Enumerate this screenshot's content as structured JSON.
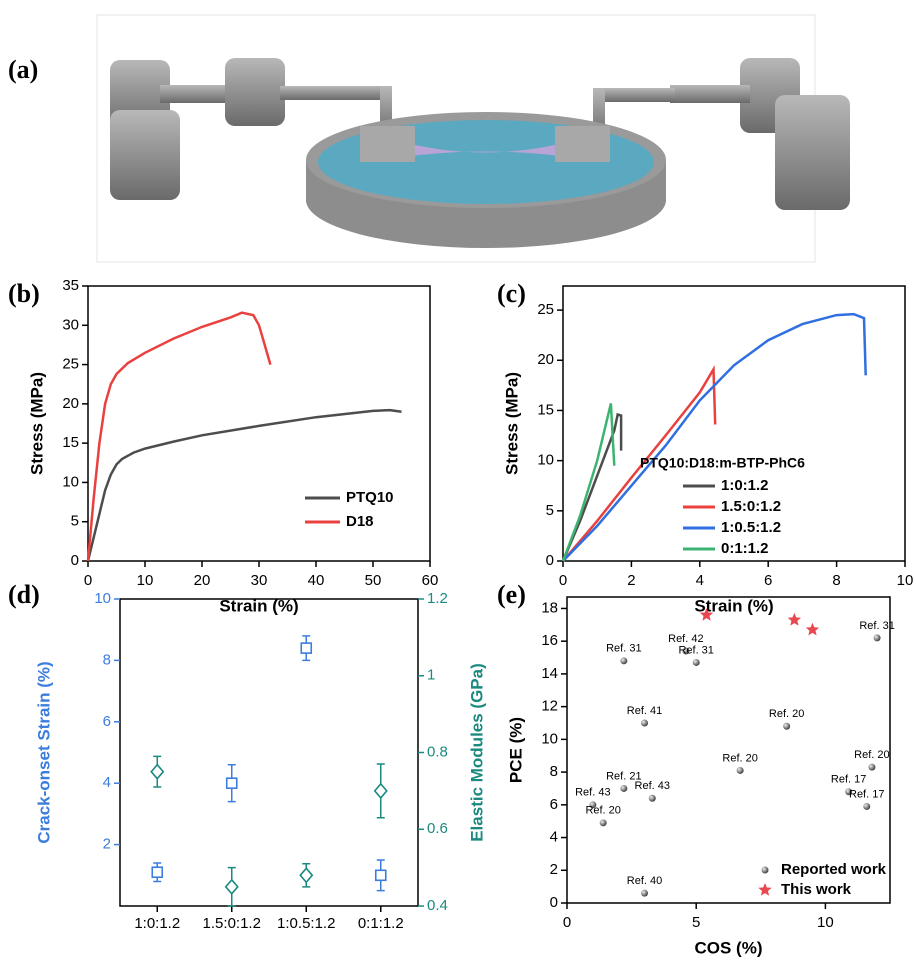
{
  "figure_a": {
    "panel_label": "(a)"
  },
  "chart_data": [
    {
      "type": "line",
      "panel_label": "(b)",
      "xlabel": "Strain (%)",
      "ylabel": "Stress (MPa)",
      "xlim": [
        0,
        60
      ],
      "ylim": [
        0,
        35
      ],
      "xticks": [
        0,
        10,
        20,
        30,
        40,
        50,
        60
      ],
      "yticks": [
        0,
        5,
        10,
        15,
        20,
        25,
        30,
        35
      ],
      "legend": "lower right",
      "series": [
        {
          "name": "PTQ10",
          "color": "#4d4d4d",
          "x": [
            0,
            1,
            2,
            3,
            4,
            5,
            6,
            8,
            10,
            15,
            20,
            30,
            40,
            50,
            53,
            55
          ],
          "values": [
            0,
            3,
            6,
            9,
            11,
            12.3,
            13,
            13.8,
            14.3,
            15.2,
            16,
            17.2,
            18.3,
            19.1,
            19.2,
            19
          ]
        },
        {
          "name": "D18",
          "color": "#e8413e",
          "x": [
            0,
            1,
            2,
            3,
            4,
            5,
            7,
            10,
            15,
            20,
            25,
            27,
            29,
            30,
            31,
            32
          ],
          "values": [
            0,
            8,
            15,
            20,
            22.5,
            23.8,
            25.2,
            26.5,
            28.3,
            29.8,
            31,
            31.6,
            31.3,
            30,
            27.5,
            25
          ]
        }
      ]
    },
    {
      "type": "line",
      "panel_label": "(c)",
      "xlabel": "Strain (%)",
      "ylabel": "Stress (MPa)",
      "xlim": [
        0,
        10
      ],
      "ylim": [
        0,
        27.4
      ],
      "xticks": [
        0,
        2,
        4,
        6,
        8,
        10
      ],
      "yticks": [
        0,
        5,
        10,
        15,
        20,
        25
      ],
      "legend": "lower right",
      "legend_title": "PTQ10:D18:m-BTP-PhC6",
      "series": [
        {
          "name": "1:0:1.2",
          "color": "#4d4d4d",
          "x": [
            0,
            0.5,
            1,
            1.5,
            1.6,
            1.7,
            1.7
          ],
          "values": [
            0,
            4,
            8.5,
            13,
            14.6,
            14.5,
            11
          ]
        },
        {
          "name": "1.5:0:1.2",
          "color": "#e8413e",
          "x": [
            0,
            1,
            2,
            3,
            4,
            4.4,
            4.45
          ],
          "values": [
            0,
            4,
            8.3,
            12.5,
            16.8,
            19.1,
            13.6
          ]
        },
        {
          "name": "1:0.5:1.2",
          "color": "#2f6fe0",
          "x": [
            0,
            1,
            2,
            3,
            4,
            5,
            6,
            7,
            8,
            8.5,
            8.8,
            8.85
          ],
          "values": [
            0,
            3.5,
            7.5,
            11.5,
            16,
            19.5,
            22,
            23.6,
            24.5,
            24.6,
            24.2,
            18.5
          ]
        },
        {
          "name": "0:1:1.2",
          "color": "#3cb371",
          "x": [
            0,
            0.5,
            1,
            1.4,
            1.45,
            1.5
          ],
          "values": [
            0,
            4.5,
            10,
            15.7,
            12.5,
            9.5
          ]
        }
      ]
    },
    {
      "type": "scatter",
      "panel_label": "(d)",
      "ylabel": "Crack-onset Strain (%)",
      "y2label": "Elastic Modules (GPa)",
      "categories": [
        "1:0:1.2",
        "1.5:0:1.2",
        "1:0.5:1.2",
        "0:1:1.2"
      ],
      "ylim": [
        0,
        10
      ],
      "yticks": [
        2,
        4,
        6,
        8,
        10
      ],
      "y2lim": [
        0.4,
        1.2
      ],
      "y2ticks": [
        0.4,
        0.6,
        0.8,
        1.0,
        1.2
      ],
      "series": [
        {
          "color": "#3b7ddd",
          "marker": "square",
          "axis": "y",
          "values": [
            1.1,
            4.0,
            8.4,
            1.0
          ],
          "errors": [
            0.3,
            0.6,
            0.4,
            0.5
          ]
        },
        {
          "color": "#1a8a80",
          "marker": "diamond",
          "axis": "y2",
          "values": [
            0.75,
            0.45,
            0.48,
            0.7
          ],
          "errors": [
            0.04,
            0.05,
            0.03,
            0.07
          ]
        }
      ]
    },
    {
      "type": "scatter",
      "panel_label": "(e)",
      "xlabel": "COS (%)",
      "ylabel": "PCE (%)",
      "xlim": [
        0,
        12.5
      ],
      "ylim": [
        0,
        18.7
      ],
      "xticks": [
        0,
        5,
        10
      ],
      "yticks": [
        0,
        2,
        4,
        6,
        8,
        10,
        12,
        14,
        16,
        18
      ],
      "legend": "lower right",
      "series": [
        {
          "name": "Reported work",
          "color": "#6e6e6e",
          "marker": "sphere",
          "x": [
            2.2,
            4.6,
            5,
            3,
            8.5,
            12,
            6.7,
            2.2,
            3.3,
            1,
            1.4,
            11.8,
            10.9,
            11.6,
            3
          ],
          "values": [
            14.8,
            15.4,
            14.7,
            11,
            10.8,
            16.2,
            8.1,
            7,
            6.4,
            6,
            4.9,
            8.3,
            6.8,
            5.9,
            0.6
          ],
          "point_labels": [
            "Ref. 31",
            "Ref. 42",
            "Ref. 31",
            "Ref. 41",
            "Ref. 20",
            "Ref. 31",
            "Ref. 20",
            "Ref. 21",
            "Ref. 43",
            "Ref. 43",
            "Ref. 20",
            "Ref. 20",
            "Ref. 17",
            "Ref. 17",
            "Ref. 40"
          ]
        },
        {
          "name": "This work",
          "color": "#e84850",
          "marker": "star",
          "x": [
            5.4,
            8.8,
            9.5
          ],
          "values": [
            17.6,
            17.3,
            16.7
          ]
        }
      ]
    }
  ]
}
